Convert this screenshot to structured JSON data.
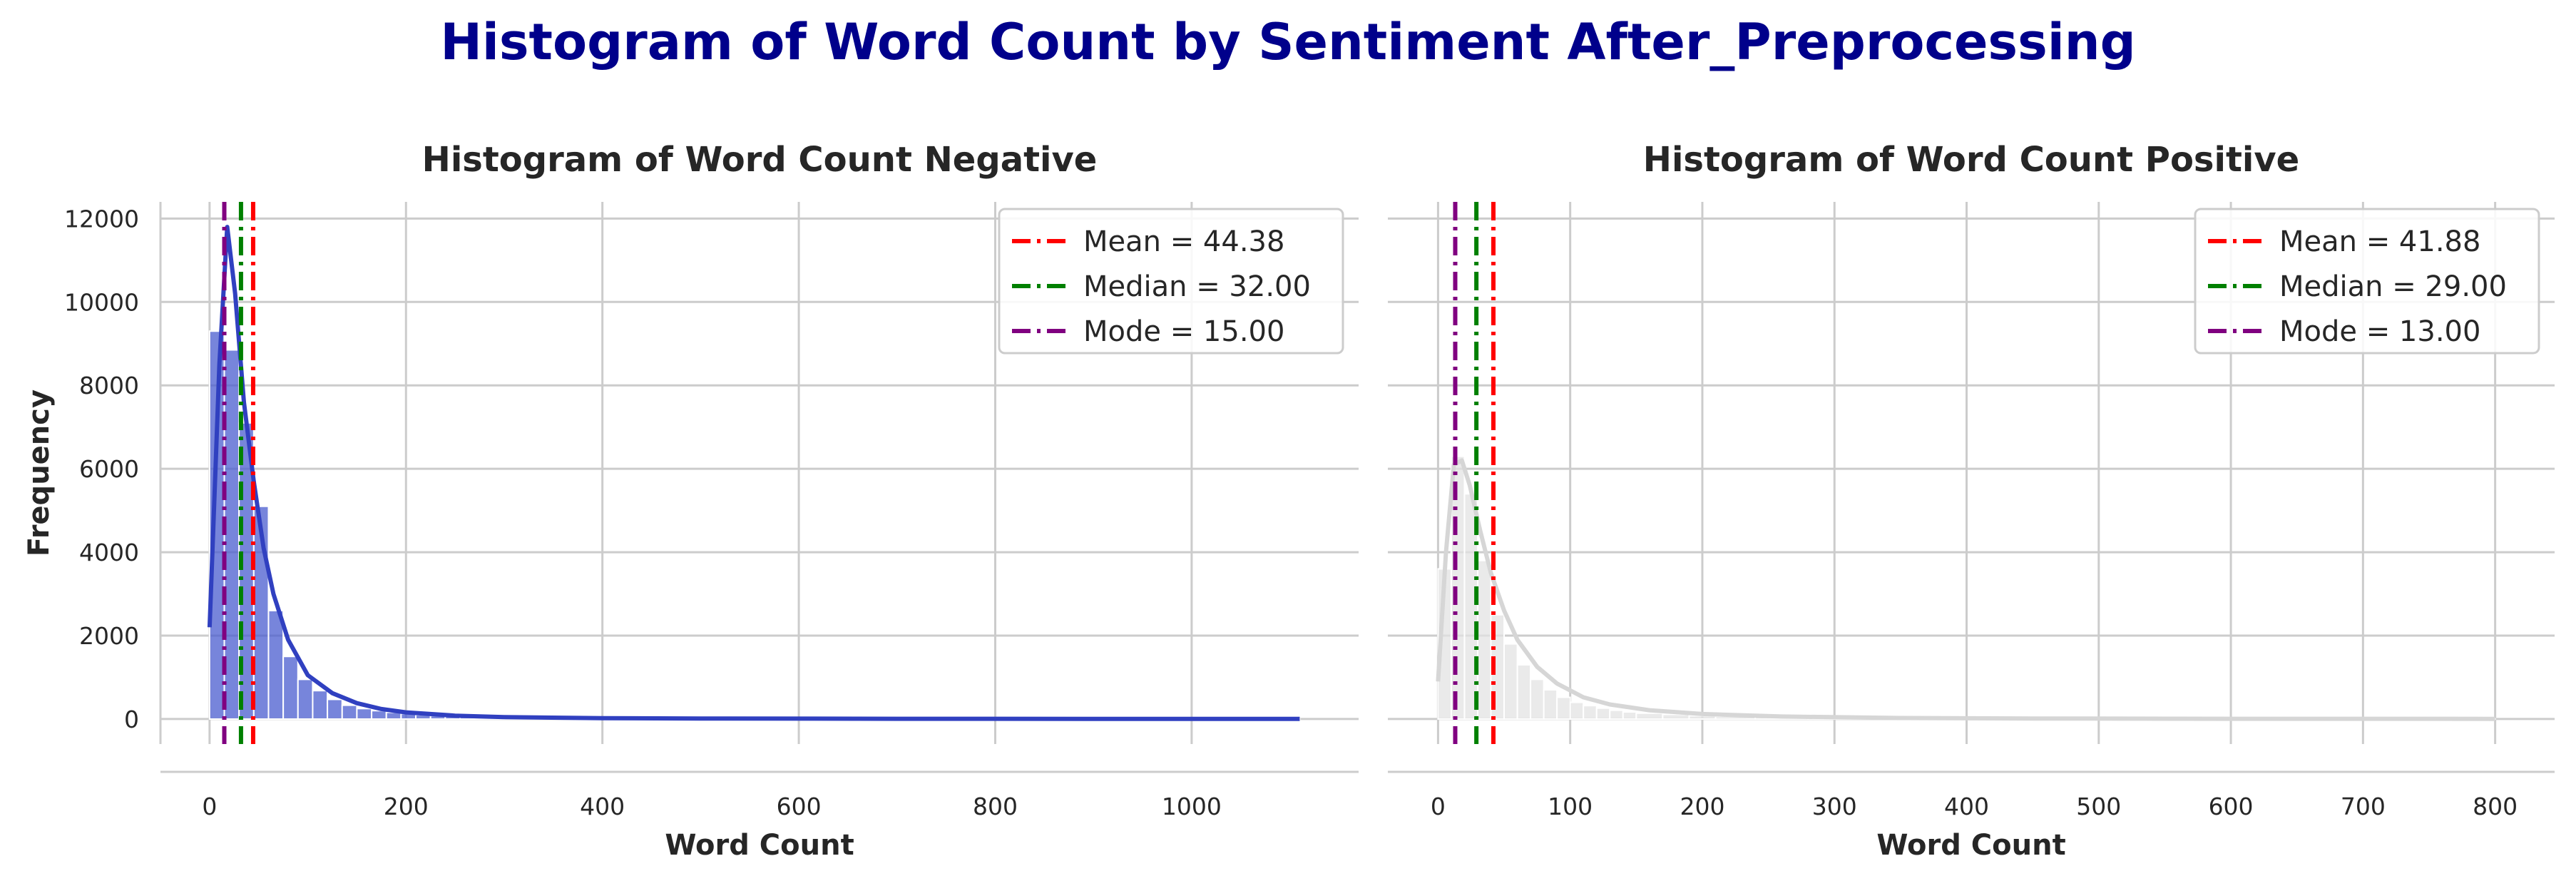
{
  "figure": {
    "title": "Histogram of Word Count by Sentiment After_Preprocessing",
    "title_color": "#00008b"
  },
  "chart_data": [
    {
      "type": "histogram",
      "title": "Histogram of Word Count Negative",
      "xlabel": "Word Count",
      "ylabel": "Frequency",
      "xlim": [
        -50,
        1170
      ],
      "ylim": [
        -600,
        12400
      ],
      "xticks": [
        0,
        200,
        400,
        600,
        800,
        1000
      ],
      "yticks": [
        0,
        2000,
        4000,
        6000,
        8000,
        10000,
        12000
      ],
      "grid": true,
      "legend_position": "top-right",
      "bar_color": "#4a5ccf",
      "kde_color": "#3040c0",
      "bins": {
        "edges": [
          0,
          15,
          30,
          45,
          60,
          75,
          90,
          105,
          120,
          135,
          150,
          165,
          180,
          195,
          210,
          225,
          240,
          255,
          270,
          285,
          300,
          330,
          360,
          400,
          450,
          500,
          600,
          700,
          800,
          900,
          1000,
          1110
        ],
        "counts": [
          9300,
          8850,
          7100,
          5100,
          2600,
          1500,
          950,
          680,
          470,
          330,
          250,
          200,
          160,
          130,
          100,
          80,
          65,
          55,
          45,
          40,
          30,
          25,
          20,
          15,
          10,
          8,
          5,
          4,
          3,
          2,
          2
        ]
      },
      "kde": {
        "x": [
          0,
          10,
          18,
          26,
          35,
          45,
          55,
          65,
          80,
          100,
          125,
          150,
          175,
          200,
          250,
          300,
          400,
          500,
          700,
          900,
          1110
        ],
        "y": [
          2200,
          8500,
          11800,
          10200,
          7600,
          5700,
          4100,
          3000,
          1900,
          1050,
          620,
          380,
          240,
          160,
          80,
          45,
          20,
          12,
          6,
          3,
          2
        ]
      },
      "lines": [
        {
          "label": "Mean = 44.38",
          "value": 44.38,
          "color": "#ff0000"
        },
        {
          "label": "Median = 32.00",
          "value": 32.0,
          "color": "#008000"
        },
        {
          "label": "Mode = 15.00",
          "value": 15.0,
          "color": "#800080"
        }
      ]
    },
    {
      "type": "histogram",
      "title": "Histogram of Word Count Positive",
      "xlabel": "Word Count",
      "ylabel": "",
      "xlim": [
        -38,
        845
      ],
      "ylim": [
        -600,
        12400
      ],
      "xticks": [
        0,
        100,
        200,
        300,
        400,
        500,
        600,
        700,
        800
      ],
      "yticks": [
        0,
        2000,
        4000,
        6000,
        8000,
        10000,
        12000
      ],
      "grid": true,
      "legend_position": "top-right",
      "bar_color": "#e3e3e3",
      "kde_color": "#d6d6d6",
      "bins": {
        "edges": [
          0,
          10,
          20,
          30,
          40,
          50,
          60,
          70,
          80,
          90,
          100,
          110,
          120,
          130,
          140,
          150,
          170,
          190,
          210,
          240,
          280,
          320,
          380,
          450,
          550,
          650,
          800
        ],
        "counts": [
          3600,
          6300,
          5400,
          3800,
          2500,
          1800,
          1300,
          950,
          700,
          520,
          400,
          320,
          260,
          210,
          170,
          140,
          110,
          80,
          60,
          45,
          30,
          20,
          12,
          8,
          5,
          3
        ]
      },
      "kde": {
        "x": [
          0,
          6,
          12,
          18,
          24,
          32,
          40,
          50,
          60,
          75,
          90,
          110,
          130,
          160,
          200,
          260,
          350,
          450,
          600,
          800
        ],
        "y": [
          900,
          4000,
          6100,
          6200,
          5600,
          4500,
          3500,
          2600,
          1900,
          1250,
          850,
          520,
          350,
          210,
          120,
          60,
          25,
          12,
          6,
          3
        ]
      },
      "lines": [
        {
          "label": "Mean = 41.88",
          "value": 41.88,
          "color": "#ff0000"
        },
        {
          "label": "Median = 29.00",
          "value": 29.0,
          "color": "#008000"
        },
        {
          "label": "Mode = 13.00",
          "value": 13.0,
          "color": "#800080"
        }
      ]
    }
  ]
}
